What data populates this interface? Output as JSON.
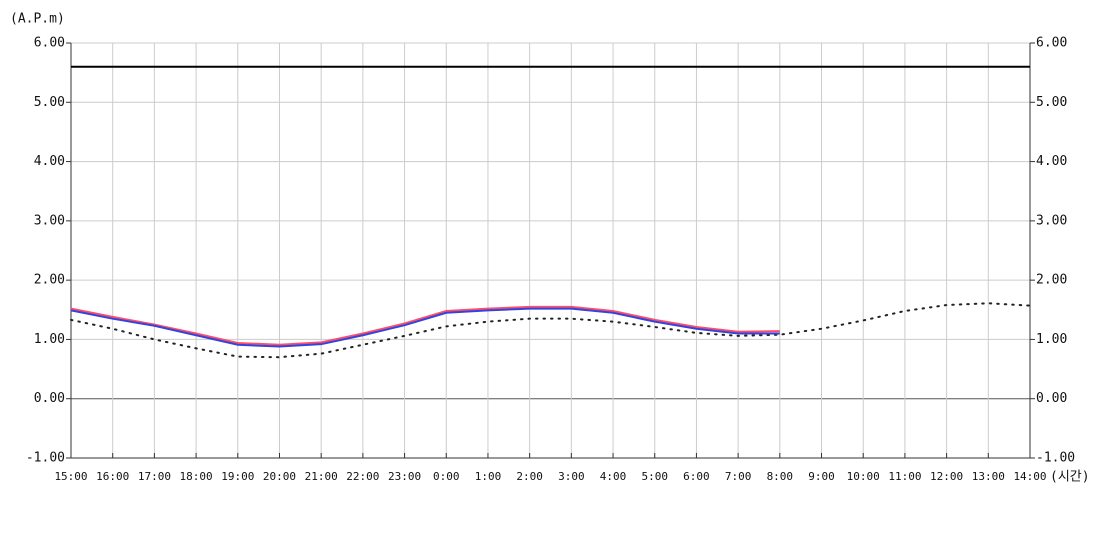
{
  "chart_data": {
    "type": "line",
    "y_label": "(A.P.m)",
    "x_label": "(시간)",
    "categories": [
      "15:00",
      "16:00",
      "17:00",
      "18:00",
      "19:00",
      "20:00",
      "21:00",
      "22:00",
      "23:00",
      "0:00",
      "1:00",
      "2:00",
      "3:00",
      "4:00",
      "5:00",
      "6:00",
      "7:00",
      "8:00",
      "9:00",
      "10:00",
      "11:00",
      "12:00",
      "13:00",
      "14:00"
    ],
    "series": [
      {
        "color": "#000000",
        "dash": "solid",
        "width": 2,
        "values": [
          5.6,
          5.6,
          5.6,
          5.6,
          5.6,
          5.6,
          5.6,
          5.6,
          5.6,
          5.6,
          5.6,
          5.6,
          5.6,
          5.6,
          5.6,
          5.6,
          5.6,
          5.6,
          5.6,
          5.6,
          5.6,
          5.6,
          5.6,
          5.6
        ]
      },
      {
        "color": "#222222",
        "dash": "dotted",
        "width": 2,
        "values": [
          1.33,
          1.18,
          1.0,
          0.85,
          0.71,
          0.7,
          0.76,
          0.91,
          1.06,
          1.22,
          1.3,
          1.35,
          1.35,
          1.3,
          1.21,
          1.11,
          1.06,
          1.08,
          1.18,
          1.32,
          1.48,
          1.58,
          1.61,
          1.57
        ]
      },
      {
        "color": "#ff4d6a",
        "dash": "solid",
        "width": 2,
        "values": [
          1.52,
          1.38,
          1.25,
          1.1,
          0.94,
          0.91,
          0.95,
          1.1,
          1.27,
          1.48,
          1.52,
          1.55,
          1.55,
          1.48,
          1.33,
          1.21,
          1.13,
          1.14,
          null,
          null,
          null,
          null,
          null,
          null
        ]
      },
      {
        "color": "#3344dd",
        "dash": "solid",
        "width": 2,
        "values": [
          1.49,
          1.35,
          1.23,
          1.07,
          0.91,
          0.88,
          0.92,
          1.07,
          1.24,
          1.45,
          1.49,
          1.52,
          1.52,
          1.45,
          1.3,
          1.18,
          1.1,
          1.1,
          null,
          null,
          null,
          null,
          null,
          null
        ]
      }
    ],
    "ylim": [
      -1,
      6
    ],
    "yticks": [
      {
        "value": -1,
        "label": "-1.00"
      },
      {
        "value": 0,
        "label": "0.00"
      },
      {
        "value": 1,
        "label": "1.00"
      },
      {
        "value": 2,
        "label": "2.00"
      },
      {
        "value": 3,
        "label": "3.00"
      },
      {
        "value": 4,
        "label": "4.00"
      },
      {
        "value": 5,
        "label": "5.00"
      },
      {
        "value": 6,
        "label": "6.00"
      }
    ],
    "grid": true
  }
}
